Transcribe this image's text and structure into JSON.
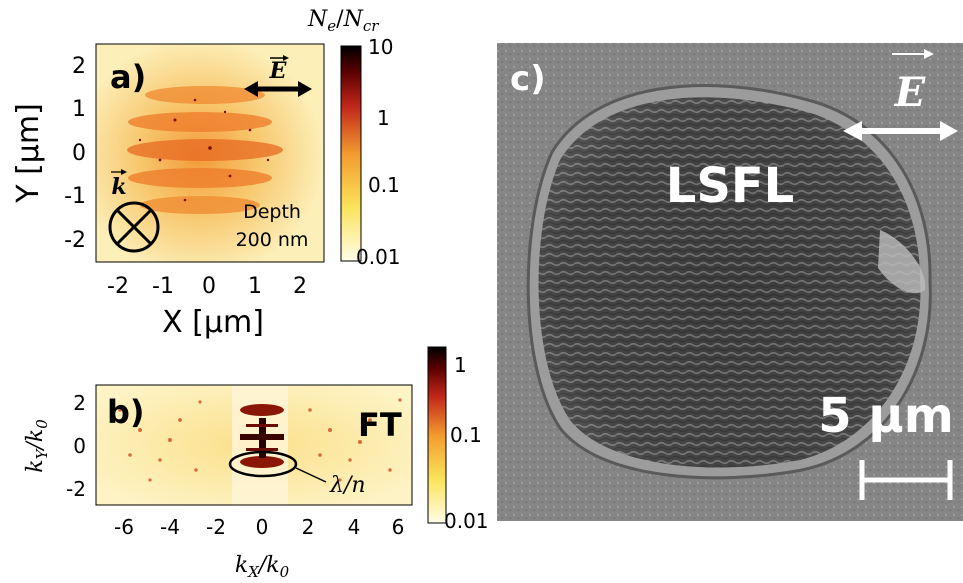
{
  "panels": {
    "a": {
      "label": "a)",
      "xlabel": "X [µm]",
      "ylabel": "Y [µm]",
      "xticks": [
        "-2",
        "-1",
        "0",
        "1",
        "2"
      ],
      "yticks": [
        "2",
        "1",
        "0",
        "-1",
        "-2"
      ],
      "efield_label": "E",
      "k_label": "k",
      "depth_line1": "Depth",
      "depth_line2": "200 nm",
      "colorbar": {
        "title": "Ne/Ncr",
        "title_main_1": "N",
        "title_sub_1": "e",
        "title_slash": "/",
        "title_main_2": "N",
        "title_sub_2": "cr",
        "ticks": [
          "10",
          "1",
          "0.1",
          "0.01"
        ]
      }
    },
    "b": {
      "label": "b)",
      "ft_label": "FT",
      "xlabel": "kX/k0",
      "ylabel": "kY/k0",
      "xlabel_main": "k",
      "xlabel_sub1": "X",
      "xlabel_sep": "/k",
      "xlabel_sub2": "0",
      "ylabel_main": "k",
      "ylabel_sub1": "Y",
      "ylabel_sep": "/k",
      "ylabel_sub2": "0",
      "xticks": [
        "-6",
        "-4",
        "-2",
        "0",
        "2",
        "4",
        "6"
      ],
      "yticks": [
        "2",
        "0",
        "-2"
      ],
      "annotation": "λ/n",
      "colorbar_ticks": [
        "1",
        "0.1",
        "0.01"
      ]
    },
    "c": {
      "label": "c)",
      "region_label": "LSFL",
      "efield_label": "E",
      "scalebar_label": "5 µm"
    }
  },
  "colors": {
    "map_low": "#fdf6c8",
    "map_mid": "#f4b85c",
    "map_high": "#b01e10",
    "map_peak": "#1a0000",
    "sem_background": "#8a8a8a",
    "sem_crater": "#4a4a4a"
  }
}
